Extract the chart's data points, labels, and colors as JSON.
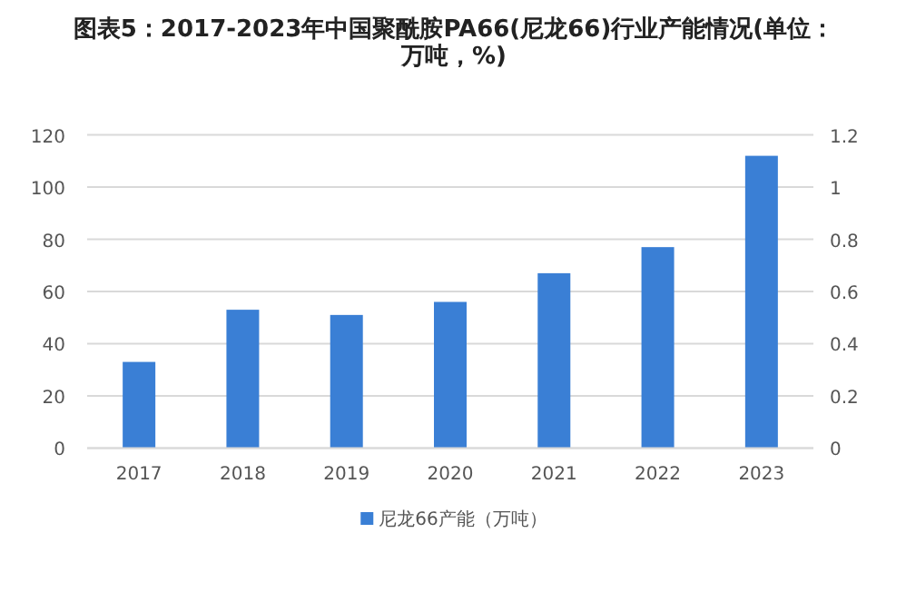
{
  "chart_data": {
    "type": "bar",
    "title": "图表5：2017-2023年中国聚酰胺PA66(尼龙66)行业产能情况(单位：万吨，%)",
    "categories": [
      "2017",
      "2018",
      "2019",
      "2020",
      "2021",
      "2022",
      "2023"
    ],
    "series": [
      {
        "name": "尼龙66产能（万吨）",
        "color": "#3a7fd5",
        "values": [
          33,
          53,
          51,
          56,
          67,
          77,
          112
        ]
      }
    ],
    "ylim": [
      0,
      120
    ],
    "yticks": [
      0,
      20,
      40,
      60,
      80,
      100,
      120
    ],
    "y2lim": [
      0,
      1.2
    ],
    "y2ticks": [
      0,
      0.2,
      0.4,
      0.6,
      0.8,
      1,
      1.2
    ],
    "grid": "y",
    "legend": "bottom"
  }
}
